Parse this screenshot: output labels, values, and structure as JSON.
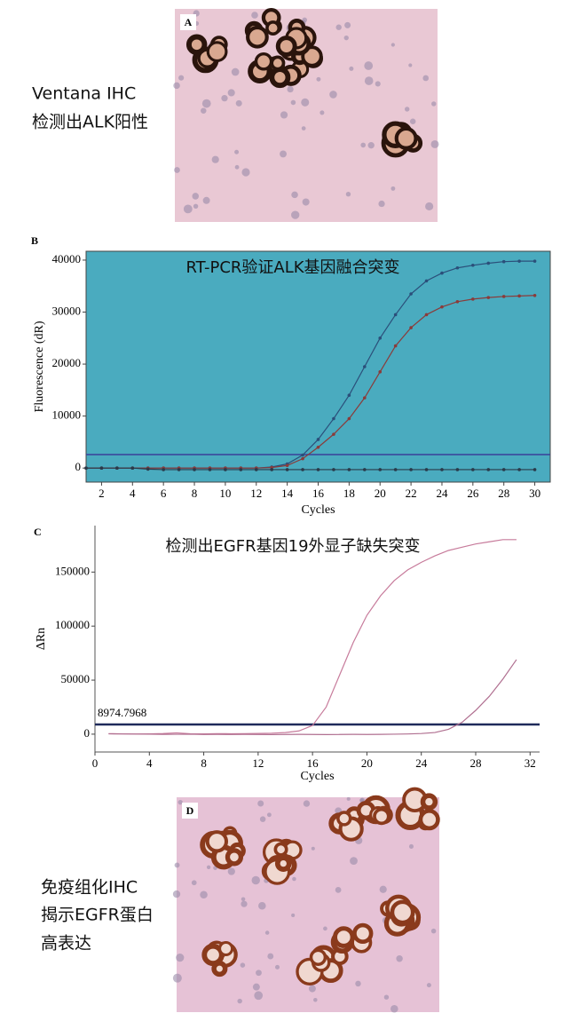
{
  "panel_a": {
    "label": "A",
    "caption": [
      "Ventana IHC",
      "检测出ALK阳性"
    ]
  },
  "chart_data": [
    {
      "type": "line",
      "panel_label": "B",
      "title": "RT-PCR验证ALK基因融合突变",
      "xlabel": "Cycles",
      "ylabel": "Fluorescence (dR)",
      "background": "#4aabbf",
      "markers": true,
      "x": [
        1,
        2,
        3,
        4,
        5,
        6,
        7,
        8,
        9,
        10,
        11,
        12,
        13,
        14,
        15,
        16,
        17,
        18,
        19,
        20,
        21,
        22,
        23,
        24,
        25,
        26,
        27,
        28,
        29,
        30
      ],
      "series": [
        {
          "color": "#2b4f7a",
          "values": [
            0,
            0,
            0,
            0,
            0,
            0,
            0,
            0,
            0,
            0,
            0,
            0,
            200,
            800,
            2500,
            5500,
            9500,
            14000,
            19500,
            25000,
            29500,
            33500,
            36000,
            37500,
            38500,
            39000,
            39400,
            39700,
            39800,
            39800
          ]
        },
        {
          "color": "#8a3b3a",
          "values": [
            0,
            0,
            0,
            0,
            0,
            0,
            0,
            0,
            0,
            0,
            0,
            0,
            100,
            500,
            1800,
            4000,
            6500,
            9500,
            13500,
            18500,
            23500,
            27000,
            29500,
            31000,
            32000,
            32500,
            32800,
            33000,
            33100,
            33200
          ]
        },
        {
          "color": "#2a3a4a",
          "values": [
            0,
            0,
            0,
            0,
            -200,
            -300,
            -300,
            -300,
            -300,
            -300,
            -300,
            -300,
            -300,
            -300,
            -300,
            -300,
            -300,
            -300,
            -300,
            -300,
            -300,
            -300,
            -300,
            -300,
            -300,
            -300,
            -300,
            -300,
            -300,
            -300
          ]
        }
      ],
      "threshold": 2600,
      "threshold_color": "#3b3f9a",
      "xlim": [
        1,
        31
      ],
      "ylim": [
        -2700,
        41700
      ],
      "xticks": [
        2,
        4,
        6,
        8,
        10,
        12,
        14,
        16,
        18,
        20,
        22,
        24,
        26,
        28,
        30
      ],
      "yticks": [
        0,
        10000,
        20000,
        30000,
        40000
      ]
    },
    {
      "type": "line",
      "panel_label": "C",
      "title": "检测出EGFR基因19外显子缺失突变",
      "xlabel": "Cycles",
      "ylabel": "ΔRn",
      "background": "#ffffff",
      "markers": false,
      "x": [
        1,
        2,
        3,
        4,
        5,
        6,
        7,
        8,
        9,
        10,
        11,
        12,
        13,
        14,
        15,
        16,
        17,
        18,
        19,
        20,
        21,
        22,
        23,
        24,
        25,
        26,
        27,
        28,
        29,
        30,
        31
      ],
      "series": [
        {
          "color": "#c77b9b",
          "values": [
            500,
            300,
            200,
            300,
            600,
            1200,
            400,
            300,
            500,
            400,
            500,
            700,
            900,
            1500,
            3000,
            8000,
            25000,
            55000,
            85000,
            110000,
            128000,
            142000,
            152000,
            159000,
            165000,
            170000,
            173000,
            176000,
            178000,
            180000,
            180000
          ]
        },
        {
          "color": "#b06f90",
          "values": [
            300,
            200,
            100,
            0,
            -200,
            -100,
            0,
            -300,
            -200,
            -300,
            -200,
            -300,
            -400,
            -300,
            -200,
            -300,
            -400,
            -300,
            -200,
            -300,
            -200,
            0,
            200,
            600,
            1500,
            4500,
            11000,
            22000,
            35000,
            51000,
            69000
          ]
        }
      ],
      "threshold": 8974.7968,
      "threshold_color": "#1f2a5a",
      "xlim": [
        0,
        32.7
      ],
      "ylim": [
        -16500,
        193000
      ],
      "xticks": [
        0,
        4,
        8,
        12,
        16,
        20,
        24,
        28,
        32
      ],
      "yticks": [
        0,
        50000,
        100000,
        150000
      ]
    }
  ],
  "panel_d": {
    "label": "D",
    "caption": [
      "免疫组化IHC",
      "揭示EGFR蛋白",
      "高表达"
    ]
  }
}
